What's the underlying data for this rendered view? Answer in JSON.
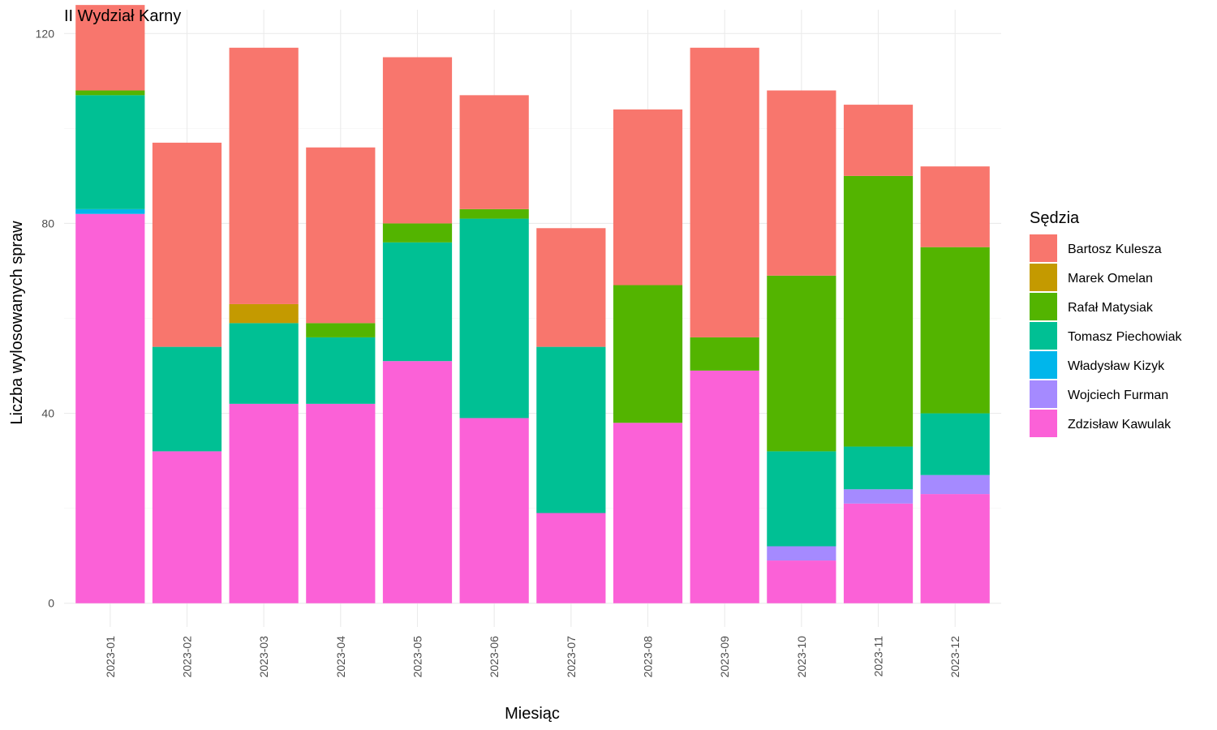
{
  "chart_data": {
    "type": "bar",
    "stacked": true,
    "title": "II Wydział Karny",
    "xlabel": "Miesiąc",
    "ylabel": "Liczba wylosowanych spraw",
    "ylim": [
      -5,
      125
    ],
    "yticks": [
      0,
      40,
      80,
      120
    ],
    "grid": true,
    "legend_title": "Sędzia",
    "legend_position": "right",
    "categories": [
      "2023-01",
      "2023-02",
      "2023-03",
      "2023-04",
      "2023-05",
      "2023-06",
      "2023-07",
      "2023-08",
      "2023-09",
      "2023-10",
      "2023-11",
      "2023-12"
    ],
    "stack_order": [
      "Zdzisław Kawulak",
      "Wojciech Furman",
      "Władysław Kizyk",
      "Tomasz Piechowiak",
      "Rafał Matysiak",
      "Marek Omelan",
      "Bartosz Kulesza"
    ],
    "series": [
      {
        "name": "Bartosz Kulesza",
        "color": "#F8766D",
        "values": [
          18,
          43,
          54,
          37,
          35,
          24,
          25,
          37,
          61,
          39,
          15,
          17
        ]
      },
      {
        "name": "Marek Omelan",
        "color": "#C49A00",
        "values": [
          0,
          0,
          4,
          0,
          0,
          0,
          0,
          0,
          0,
          0,
          0,
          0
        ]
      },
      {
        "name": "Rafał Matysiak",
        "color": "#53B400",
        "values": [
          1,
          0,
          0,
          3,
          4,
          2,
          0,
          29,
          7,
          37,
          57,
          35
        ]
      },
      {
        "name": "Tomasz Piechowiak",
        "color": "#00C094",
        "values": [
          24,
          22,
          17,
          14,
          25,
          42,
          35,
          0,
          0,
          20,
          9,
          13
        ]
      },
      {
        "name": "Władysław Kizyk",
        "color": "#00B6EB",
        "values": [
          1,
          0,
          0,
          0,
          0,
          0,
          0,
          0,
          0,
          0,
          0,
          0
        ]
      },
      {
        "name": "Wojciech Furman",
        "color": "#A58AFF",
        "values": [
          0,
          0,
          0,
          0,
          0,
          0,
          0,
          0,
          0,
          3,
          3,
          4
        ]
      },
      {
        "name": "Zdzisław Kawulak",
        "color": "#FB61D7",
        "values": [
          82,
          32,
          42,
          42,
          51,
          39,
          19,
          38,
          49,
          9,
          21,
          23
        ]
      }
    ]
  }
}
